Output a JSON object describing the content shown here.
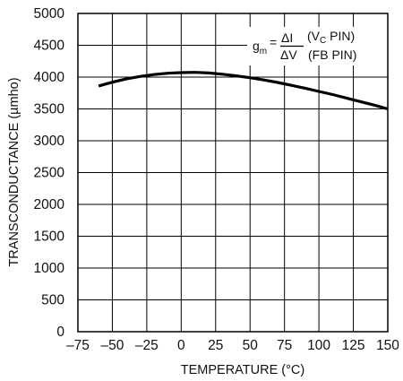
{
  "chart_data": {
    "type": "line",
    "title": "",
    "xlabel": "TEMPERATURE (°C)",
    "ylabel": "TRANSCONDUCTANCE (µmho)",
    "xlim": [
      -75,
      150
    ],
    "ylim": [
      0,
      5000
    ],
    "x_ticks": [
      -75,
      -50,
      -25,
      0,
      25,
      50,
      75,
      100,
      125,
      150
    ],
    "x_tick_labels": [
      "–75",
      "–50",
      "–25",
      "0",
      "25",
      "50",
      "75",
      "100",
      "125",
      "150"
    ],
    "y_ticks": [
      0,
      500,
      1000,
      1500,
      2000,
      2500,
      3000,
      3500,
      4000,
      4500,
      5000
    ],
    "y_tick_labels": [
      "0",
      "500",
      "1000",
      "1500",
      "2000",
      "2500",
      "3000",
      "3500",
      "4000",
      "4500",
      "5000"
    ],
    "grid": true,
    "legend": "none",
    "line_color": "#000000",
    "series": [
      {
        "x": [
          -60,
          -50,
          -40,
          -30,
          -20,
          -10,
          0,
          10,
          20,
          30,
          40,
          50,
          60,
          70,
          80,
          90,
          100,
          110,
          120,
          130,
          140,
          150
        ],
        "y": [
          3860,
          3920,
          3970,
          4010,
          4040,
          4060,
          4070,
          4075,
          4065,
          4045,
          4020,
          3990,
          3955,
          3915,
          3870,
          3825,
          3775,
          3725,
          3670,
          3615,
          3560,
          3500
        ]
      }
    ],
    "annotation": {
      "gm_symbol": "g",
      "gm_subscript": "m",
      "equals": "=",
      "numerator": "ΔI",
      "denominator": "ΔV",
      "num_paren_open": "(V",
      "num_sub": "C",
      "num_paren_close": " PIN)",
      "den_text": "(FB PIN)"
    }
  }
}
